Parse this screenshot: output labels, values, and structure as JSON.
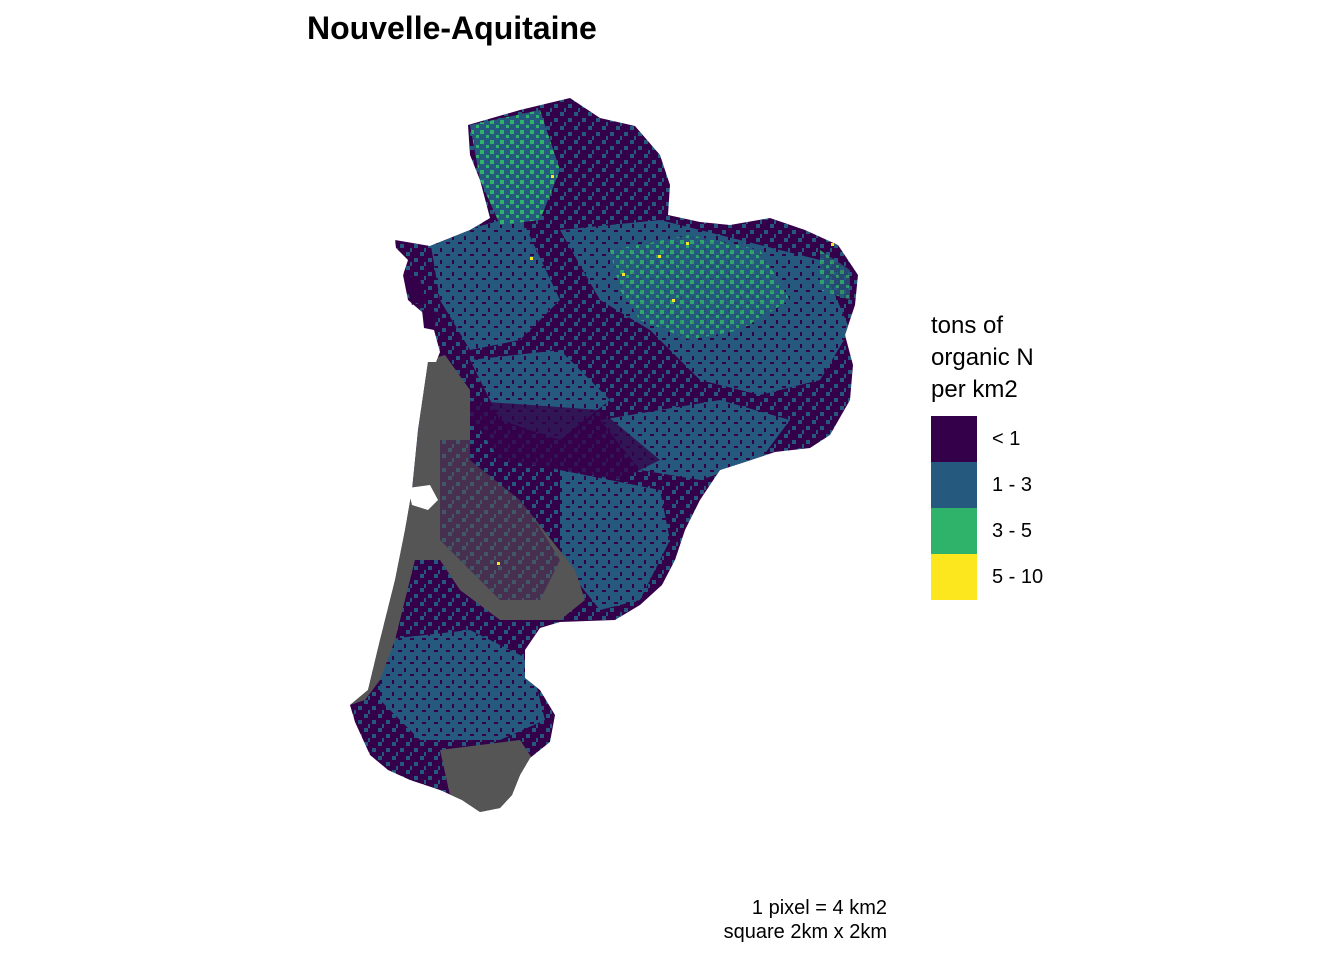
{
  "title": "Nouvelle-Aquitaine",
  "legend": {
    "title": "tons of\norganic N\nper km2",
    "items": [
      {
        "label": "< 1",
        "color": "#35004A"
      },
      {
        "label": "1 - 3",
        "color": "#25597D"
      },
      {
        "label": "3 - 5",
        "color": "#2FB36B"
      },
      {
        "label": "5 - 10",
        "color": "#FCE61E"
      }
    ]
  },
  "no_data_color": "#555555",
  "caption": {
    "line1": "1 pixel = 4 km2",
    "line2": "square 2km x 2km"
  }
}
